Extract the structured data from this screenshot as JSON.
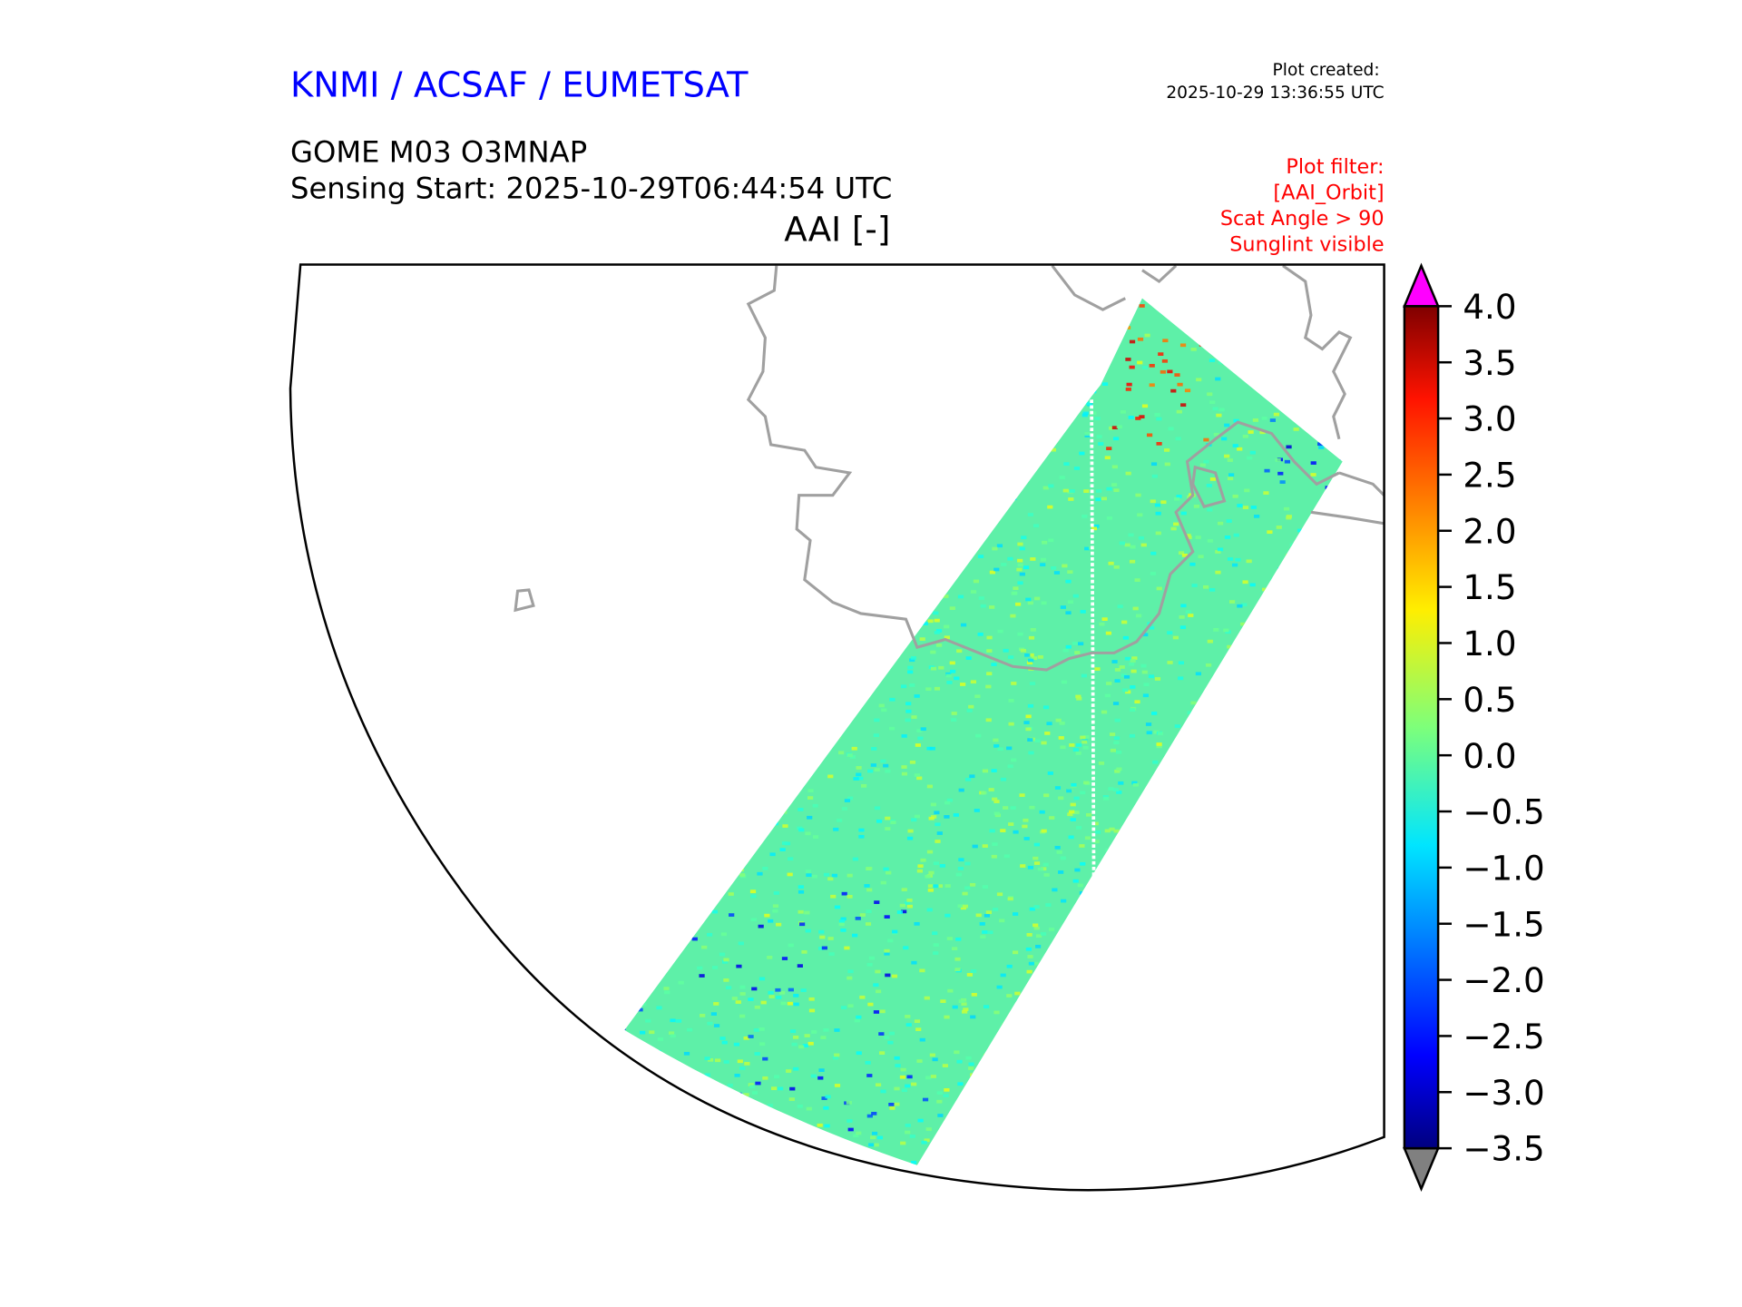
{
  "header": {
    "agency": "KNMI / ACSAF / EUMETSAT",
    "product": "GOME M03 O3MNAP",
    "sensing_start": "Sensing Start: 2025-10-29T06:44:54 UTC",
    "created_label": "Plot created:",
    "created_time": "2025-10-29 13:36:55 UTC",
    "filter_lines": [
      "Plot filter:",
      "[AAI_Orbit]",
      "Scat Angle > 90",
      "Sunglint visible"
    ]
  },
  "colors": {
    "agency": "#0000ff",
    "filter": "#ff0000",
    "coast": "#a0a0a0",
    "over": "#ff00ff",
    "under": "#808080"
  },
  "chart_data": {
    "type": "heatmap",
    "title": "AAI [-]",
    "variable": "AAI",
    "colormap": "jet",
    "vmin": -3.5,
    "vmax": 4.0,
    "extend": "both",
    "colorbar_ticks": [
      4.0,
      3.5,
      3.0,
      2.5,
      2.0,
      1.5,
      1.0,
      0.5,
      0.0,
      -0.5,
      -1.0,
      -1.5,
      -2.0,
      -2.5,
      -3.0,
      -3.5
    ],
    "colorbar_labels": [
      "4.0",
      "3.5",
      "3.0",
      "2.5",
      "2.0",
      "1.5",
      "1.0",
      "0.5",
      "0.0",
      "−0.5",
      "−1.0",
      "−1.5",
      "−2.0",
      "−2.5",
      "−3.0",
      "−3.5"
    ],
    "typical_swath_value_range": [
      -1.0,
      1.0
    ]
  }
}
